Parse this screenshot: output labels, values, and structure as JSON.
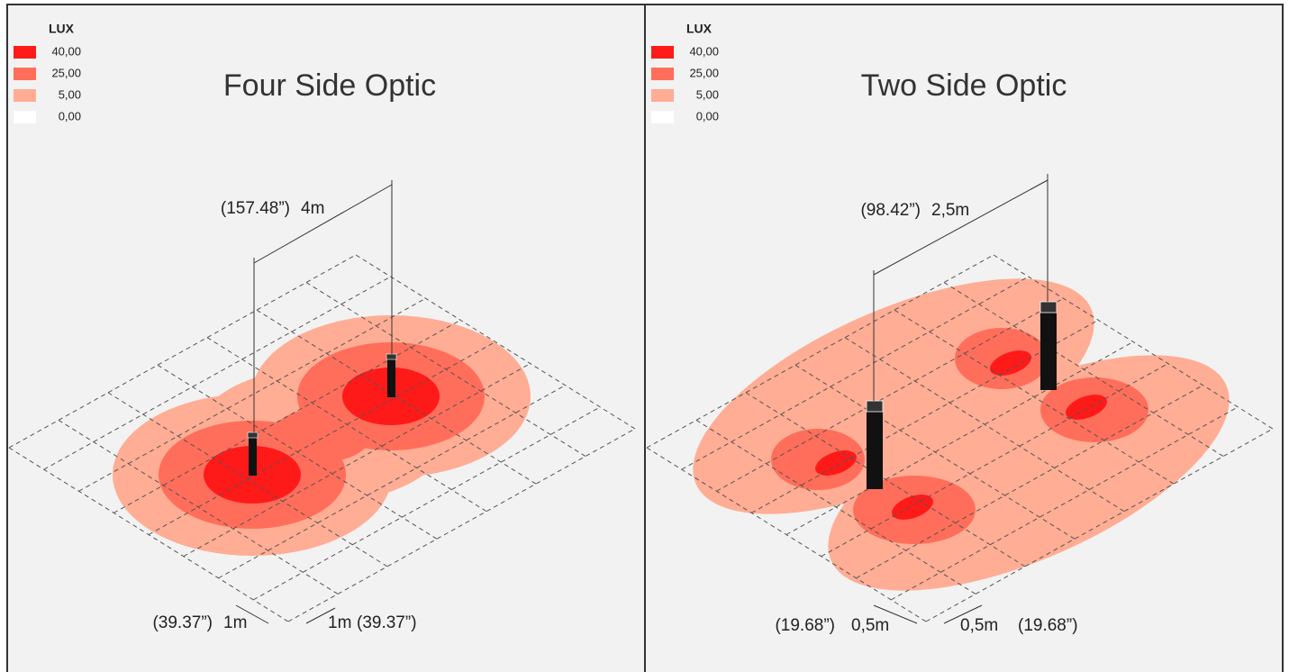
{
  "panels": [
    {
      "legend": {
        "title": "LUX",
        "items": [
          {
            "label": "40,00",
            "color": "#ff1a1a"
          },
          {
            "label": "25,00",
            "color": "#ff6e5a"
          },
          {
            "label": "5,00",
            "color": "#ffad94"
          },
          {
            "label": "0,00",
            "color": "#ffffff"
          }
        ]
      },
      "title": "Four Side Optic",
      "spacing": {
        "imperial": "(157.48”)",
        "metric": "4m"
      },
      "grid_size": [
        {
          "imperial": "(39.37”)",
          "metric": "1m"
        },
        {
          "metric": "1m",
          "imperial": "(39.37”)"
        }
      ]
    },
    {
      "legend": {
        "title": "LUX",
        "items": [
          {
            "label": "40,00",
            "color": "#ff1a1a"
          },
          {
            "label": "25,00",
            "color": "#ff6e5a"
          },
          {
            "label": "5,00",
            "color": "#ffad94"
          },
          {
            "label": "0,00",
            "color": "#ffffff"
          }
        ]
      },
      "title": "Two Side Optic",
      "spacing": {
        "imperial": "(98.42”)",
        "metric": "2,5m"
      },
      "grid_size": [
        {
          "imperial": "(19.68”)",
          "metric": "0,5m"
        },
        {
          "metric": "0,5m",
          "imperial": "(19.68”)"
        }
      ]
    }
  ]
}
